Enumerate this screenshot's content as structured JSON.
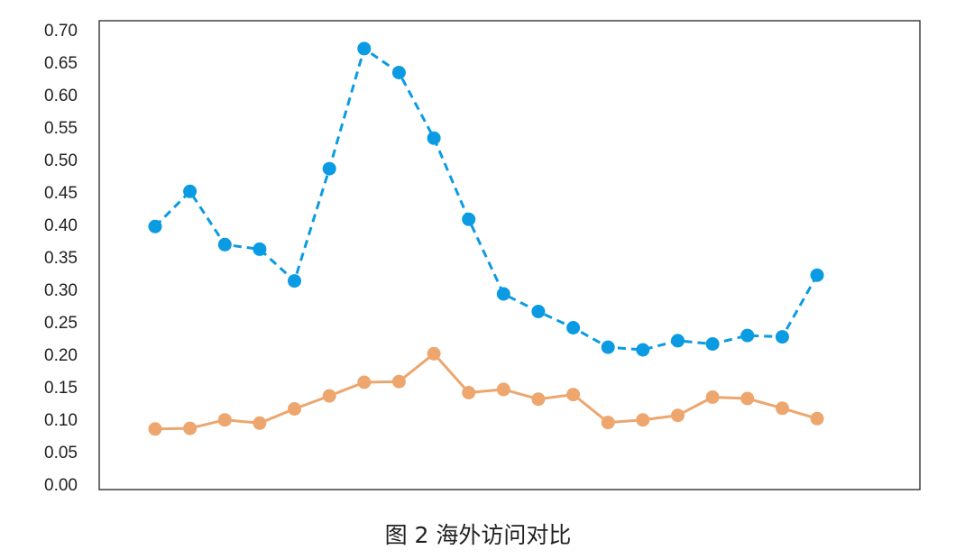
{
  "caption": "图 2  海外访问对比",
  "chart_data": {
    "type": "line",
    "ylim": [
      0,
      0.7
    ],
    "y_ticks": [
      "0.00",
      "0.05",
      "0.10",
      "0.15",
      "0.20",
      "0.25",
      "0.30",
      "0.35",
      "0.40",
      "0.45",
      "0.50",
      "0.55",
      "0.60",
      "0.65",
      "0.70"
    ],
    "x": [
      1,
      2,
      3,
      4,
      5,
      6,
      7,
      8,
      9,
      10,
      11,
      12,
      13,
      14,
      15,
      16,
      17,
      18,
      19,
      20
    ],
    "grid": false,
    "series": [
      {
        "color": "#0a9be3",
        "line_style": "dashed",
        "marker": "circle",
        "values": [
          0.397,
          0.451,
          0.369,
          0.362,
          0.313,
          0.486,
          0.671,
          0.634,
          0.533,
          0.408,
          0.293,
          0.266,
          0.241,
          0.211,
          0.207,
          0.221,
          0.216,
          0.229,
          0.227,
          0.322
        ]
      },
      {
        "color": "#eda66e",
        "line_style": "solid",
        "marker": "circle",
        "values": [
          0.085,
          0.086,
          0.099,
          0.094,
          0.116,
          0.136,
          0.157,
          0.158,
          0.201,
          0.141,
          0.146,
          0.131,
          0.138,
          0.095,
          0.099,
          0.106,
          0.134,
          0.132,
          0.117,
          0.101
        ]
      }
    ]
  }
}
